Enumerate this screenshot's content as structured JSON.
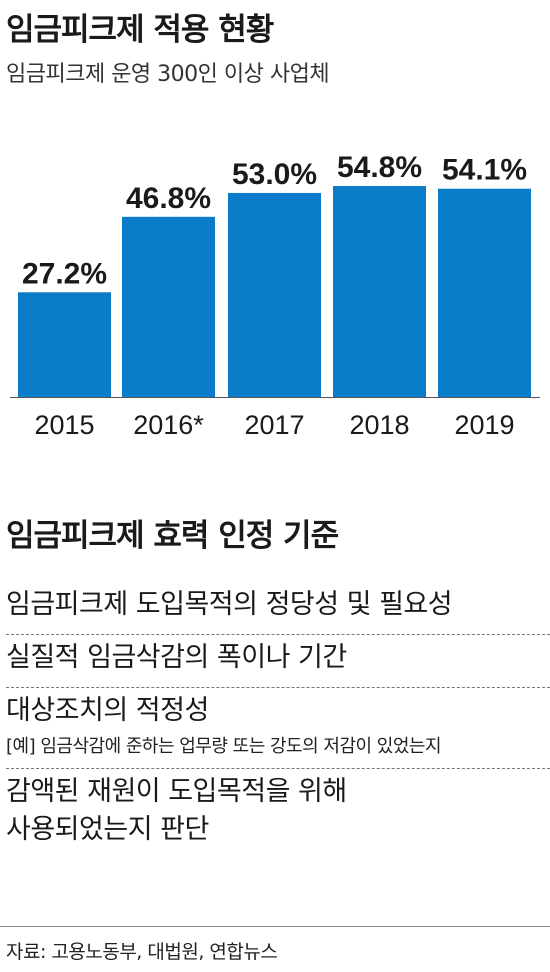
{
  "chart_data": {
    "type": "bar",
    "title": "임금피크제 적용 현황",
    "subtitle": "임금피크제 운영 300인 이상 사업체",
    "categories": [
      "2015",
      "2016*",
      "2017",
      "2018",
      "2019"
    ],
    "values": [
      27.2,
      46.8,
      53.0,
      54.8,
      54.1
    ],
    "value_labels": [
      "27.2%",
      "46.8%",
      "53.0%",
      "54.8%",
      "54.1%"
    ],
    "ylim": [
      0,
      60
    ],
    "grid": false,
    "bar_color": "#0a7cc9"
  },
  "criteria": {
    "title": "임금피크제 효력 인정 기준",
    "items": [
      {
        "main": "임금피크제 도입목적의 정당성 및 필요성"
      },
      {
        "main": "실질적 임금삭감의 폭이나 기간"
      },
      {
        "main": "대상조치의 적정성",
        "note": "[예] 임금삭감에 준하는 업무량 또는 강도의 저감이 있었는지"
      },
      {
        "main": "감액된 재원이 도입목적을 위해",
        "main2": "사용되었는지 판단"
      }
    ]
  },
  "source": "자료: 고용노동부, 대법원, 연합뉴스"
}
